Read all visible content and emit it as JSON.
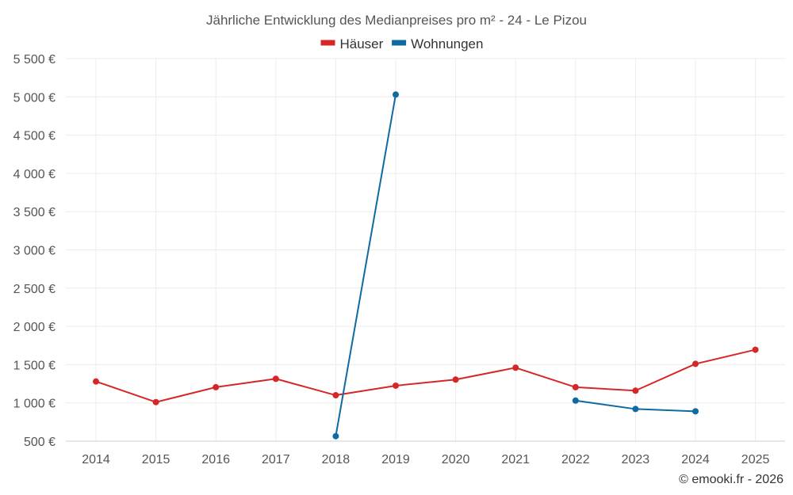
{
  "chart_data": {
    "type": "line",
    "title": "Jährliche Entwicklung des Medianpreises pro m² - 24 - Le Pizou",
    "categories": [
      "2014",
      "2015",
      "2016",
      "2017",
      "2018",
      "2019",
      "2020",
      "2021",
      "2022",
      "2023",
      "2024",
      "2025"
    ],
    "series": [
      {
        "name": "Häuser",
        "color": "#d62728",
        "values": [
          1280,
          1010,
          1205,
          1315,
          1100,
          1225,
          1305,
          1460,
          1205,
          1160,
          1510,
          1695
        ]
      },
      {
        "name": "Wohnungen",
        "color": "#0f6aa0",
        "values": [
          null,
          null,
          null,
          null,
          565,
          5030,
          null,
          null,
          1030,
          920,
          890,
          null
        ]
      }
    ],
    "ylim": [
      500,
      5500
    ],
    "yticks": [
      500,
      1000,
      1500,
      2000,
      2500,
      3000,
      3500,
      4000,
      4500,
      5000,
      5500
    ],
    "ytick_labels": [
      "500 €",
      "1 000 €",
      "1 500 €",
      "2 000 €",
      "2 500 €",
      "3 000 €",
      "3 500 €",
      "4 000 €",
      "4 500 €",
      "5 000 €",
      "5 500 €"
    ],
    "xlabel": "",
    "ylabel": "",
    "legend_position": "top-center",
    "grid": true
  },
  "credit": "© emooki.fr - 2026"
}
